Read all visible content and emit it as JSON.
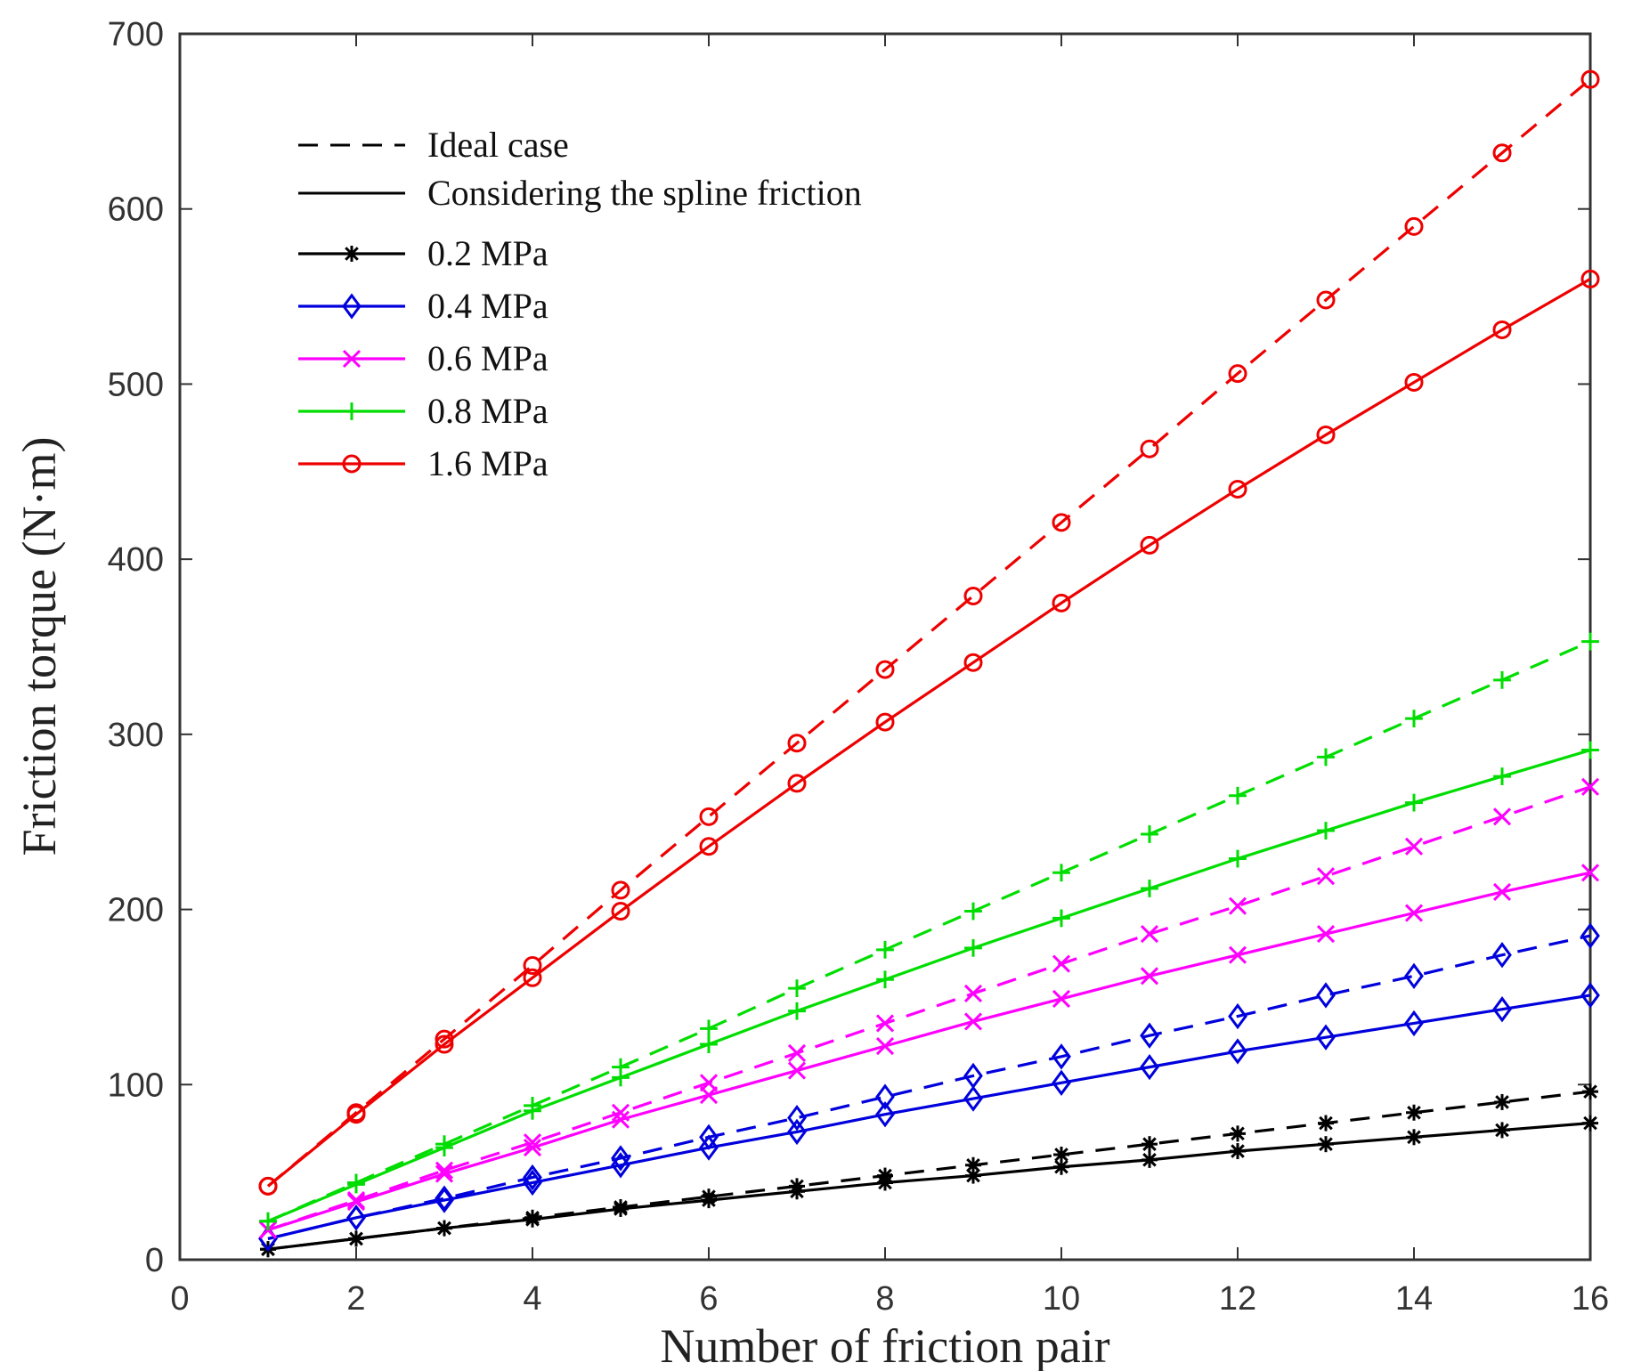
{
  "chart_data": {
    "type": "line",
    "title": "",
    "xlabel": "Number of friction pair",
    "ylabel": "Friction torque (N·m)",
    "xlim": [
      0,
      16
    ],
    "ylim": [
      0,
      700
    ],
    "xticks": [
      0,
      2,
      4,
      6,
      8,
      10,
      12,
      14,
      16
    ],
    "yticks": [
      0,
      100,
      200,
      300,
      400,
      500,
      600,
      700
    ],
    "grid": false,
    "legend_position": "top-left",
    "line_styles": [
      {
        "label": "Ideal case",
        "dash": "dashed"
      },
      {
        "label": "Considering the spline friction",
        "dash": "solid"
      }
    ],
    "x": [
      1,
      2,
      3,
      4,
      5,
      6,
      7,
      8,
      9,
      10,
      11,
      12,
      13,
      14,
      15,
      16
    ],
    "series": [
      {
        "name": "0.2 MPa",
        "color": "#000000",
        "marker": "asterisk",
        "ideal": [
          6,
          12,
          18,
          24,
          30,
          36,
          42,
          48,
          54,
          60,
          66,
          72,
          78,
          84,
          90,
          96
        ],
        "spline": [
          6,
          12,
          18,
          23,
          29,
          34,
          39,
          44,
          48,
          53,
          57,
          62,
          66,
          70,
          74,
          78
        ]
      },
      {
        "name": "0.4 MPa",
        "color": "#0000dd",
        "marker": "diamond",
        "ideal": [
          12,
          24,
          35,
          47,
          58,
          70,
          81,
          93,
          105,
          116,
          128,
          139,
          151,
          162,
          174,
          185
        ],
        "spline": [
          12,
          24,
          34,
          44,
          54,
          64,
          73,
          83,
          92,
          101,
          110,
          119,
          127,
          135,
          143,
          151
        ]
      },
      {
        "name": "0.6 MPa",
        "color": "#ff00ff",
        "marker": "x",
        "ideal": [
          17,
          34,
          51,
          67,
          84,
          101,
          118,
          135,
          152,
          169,
          186,
          202,
          219,
          236,
          253,
          270
        ],
        "spline": [
          17,
          33,
          49,
          64,
          80,
          94,
          108,
          122,
          136,
          149,
          162,
          174,
          186,
          198,
          210,
          221
        ]
      },
      {
        "name": "0.8 MPa",
        "color": "#00dd00",
        "marker": "plus",
        "ideal": [
          22,
          44,
          66,
          88,
          110,
          132,
          155,
          177,
          199,
          221,
          243,
          265,
          287,
          309,
          331,
          353
        ],
        "spline": [
          22,
          43,
          64,
          85,
          104,
          123,
          142,
          160,
          178,
          195,
          212,
          229,
          245,
          261,
          276,
          291
        ]
      },
      {
        "name": "1.6 MPa",
        "color": "#ee0000",
        "marker": "circle",
        "ideal": [
          42,
          84,
          126,
          168,
          211,
          253,
          295,
          337,
          379,
          421,
          463,
          506,
          548,
          590,
          632,
          674
        ],
        "spline": [
          42,
          83,
          123,
          161,
          199,
          236,
          272,
          307,
          341,
          375,
          408,
          440,
          471,
          501,
          531,
          560
        ]
      }
    ]
  }
}
